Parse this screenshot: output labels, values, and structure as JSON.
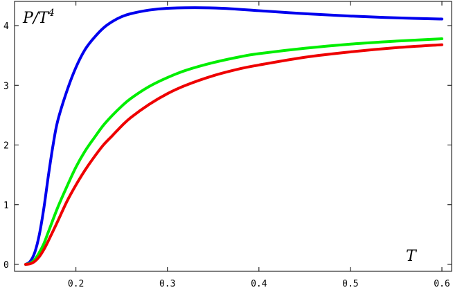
{
  "chart_data": {
    "type": "line",
    "ylabel_base": "P/T",
    "ylabel_exp": "4",
    "xlabel": "T",
    "xlim": [
      0.145,
      0.6
    ],
    "ylim": [
      0,
      4.3
    ],
    "x_ticks": [
      0.2,
      0.3,
      0.4,
      0.5,
      0.6
    ],
    "x_tick_labels": [
      "0.2",
      "0.3",
      "0.4",
      "0.5",
      "0.6"
    ],
    "y_ticks": [
      0,
      1,
      2,
      3,
      4
    ],
    "y_tick_labels": [
      "0",
      "1",
      "2",
      "3",
      "4"
    ],
    "grid": false,
    "series": [
      {
        "color": "#0000ee",
        "x": [
          0.145,
          0.15,
          0.155,
          0.16,
          0.165,
          0.17,
          0.175,
          0.18,
          0.19,
          0.2,
          0.21,
          0.22,
          0.23,
          0.24,
          0.25,
          0.26,
          0.28,
          0.3,
          0.33,
          0.36,
          0.4,
          0.45,
          0.5,
          0.55,
          0.6
        ],
        "y": [
          0.0,
          0.05,
          0.2,
          0.5,
          0.95,
          1.5,
          2.0,
          2.4,
          2.9,
          3.3,
          3.6,
          3.8,
          3.96,
          4.07,
          4.15,
          4.2,
          4.26,
          4.29,
          4.3,
          4.29,
          4.25,
          4.2,
          4.16,
          4.13,
          4.11
        ]
      },
      {
        "color": "#00ee00",
        "x": [
          0.145,
          0.15,
          0.155,
          0.16,
          0.165,
          0.17,
          0.18,
          0.19,
          0.2,
          0.21,
          0.22,
          0.23,
          0.24,
          0.25,
          0.26,
          0.28,
          0.3,
          0.32,
          0.35,
          0.38,
          0.4,
          0.45,
          0.5,
          0.55,
          0.6
        ],
        "y": [
          0.0,
          0.02,
          0.08,
          0.2,
          0.35,
          0.55,
          0.95,
          1.3,
          1.63,
          1.9,
          2.12,
          2.33,
          2.5,
          2.65,
          2.78,
          2.98,
          3.13,
          3.25,
          3.38,
          3.48,
          3.53,
          3.62,
          3.69,
          3.74,
          3.78
        ]
      },
      {
        "color": "#ee0000",
        "x": [
          0.145,
          0.15,
          0.155,
          0.16,
          0.165,
          0.17,
          0.18,
          0.19,
          0.2,
          0.21,
          0.22,
          0.23,
          0.24,
          0.25,
          0.26,
          0.28,
          0.3,
          0.32,
          0.35,
          0.38,
          0.4,
          0.45,
          0.5,
          0.55,
          0.6
        ],
        "y": [
          0.0,
          0.01,
          0.05,
          0.13,
          0.25,
          0.4,
          0.72,
          1.05,
          1.33,
          1.58,
          1.8,
          2.0,
          2.16,
          2.32,
          2.46,
          2.68,
          2.86,
          3.0,
          3.16,
          3.28,
          3.34,
          3.47,
          3.56,
          3.63,
          3.68
        ]
      }
    ]
  }
}
